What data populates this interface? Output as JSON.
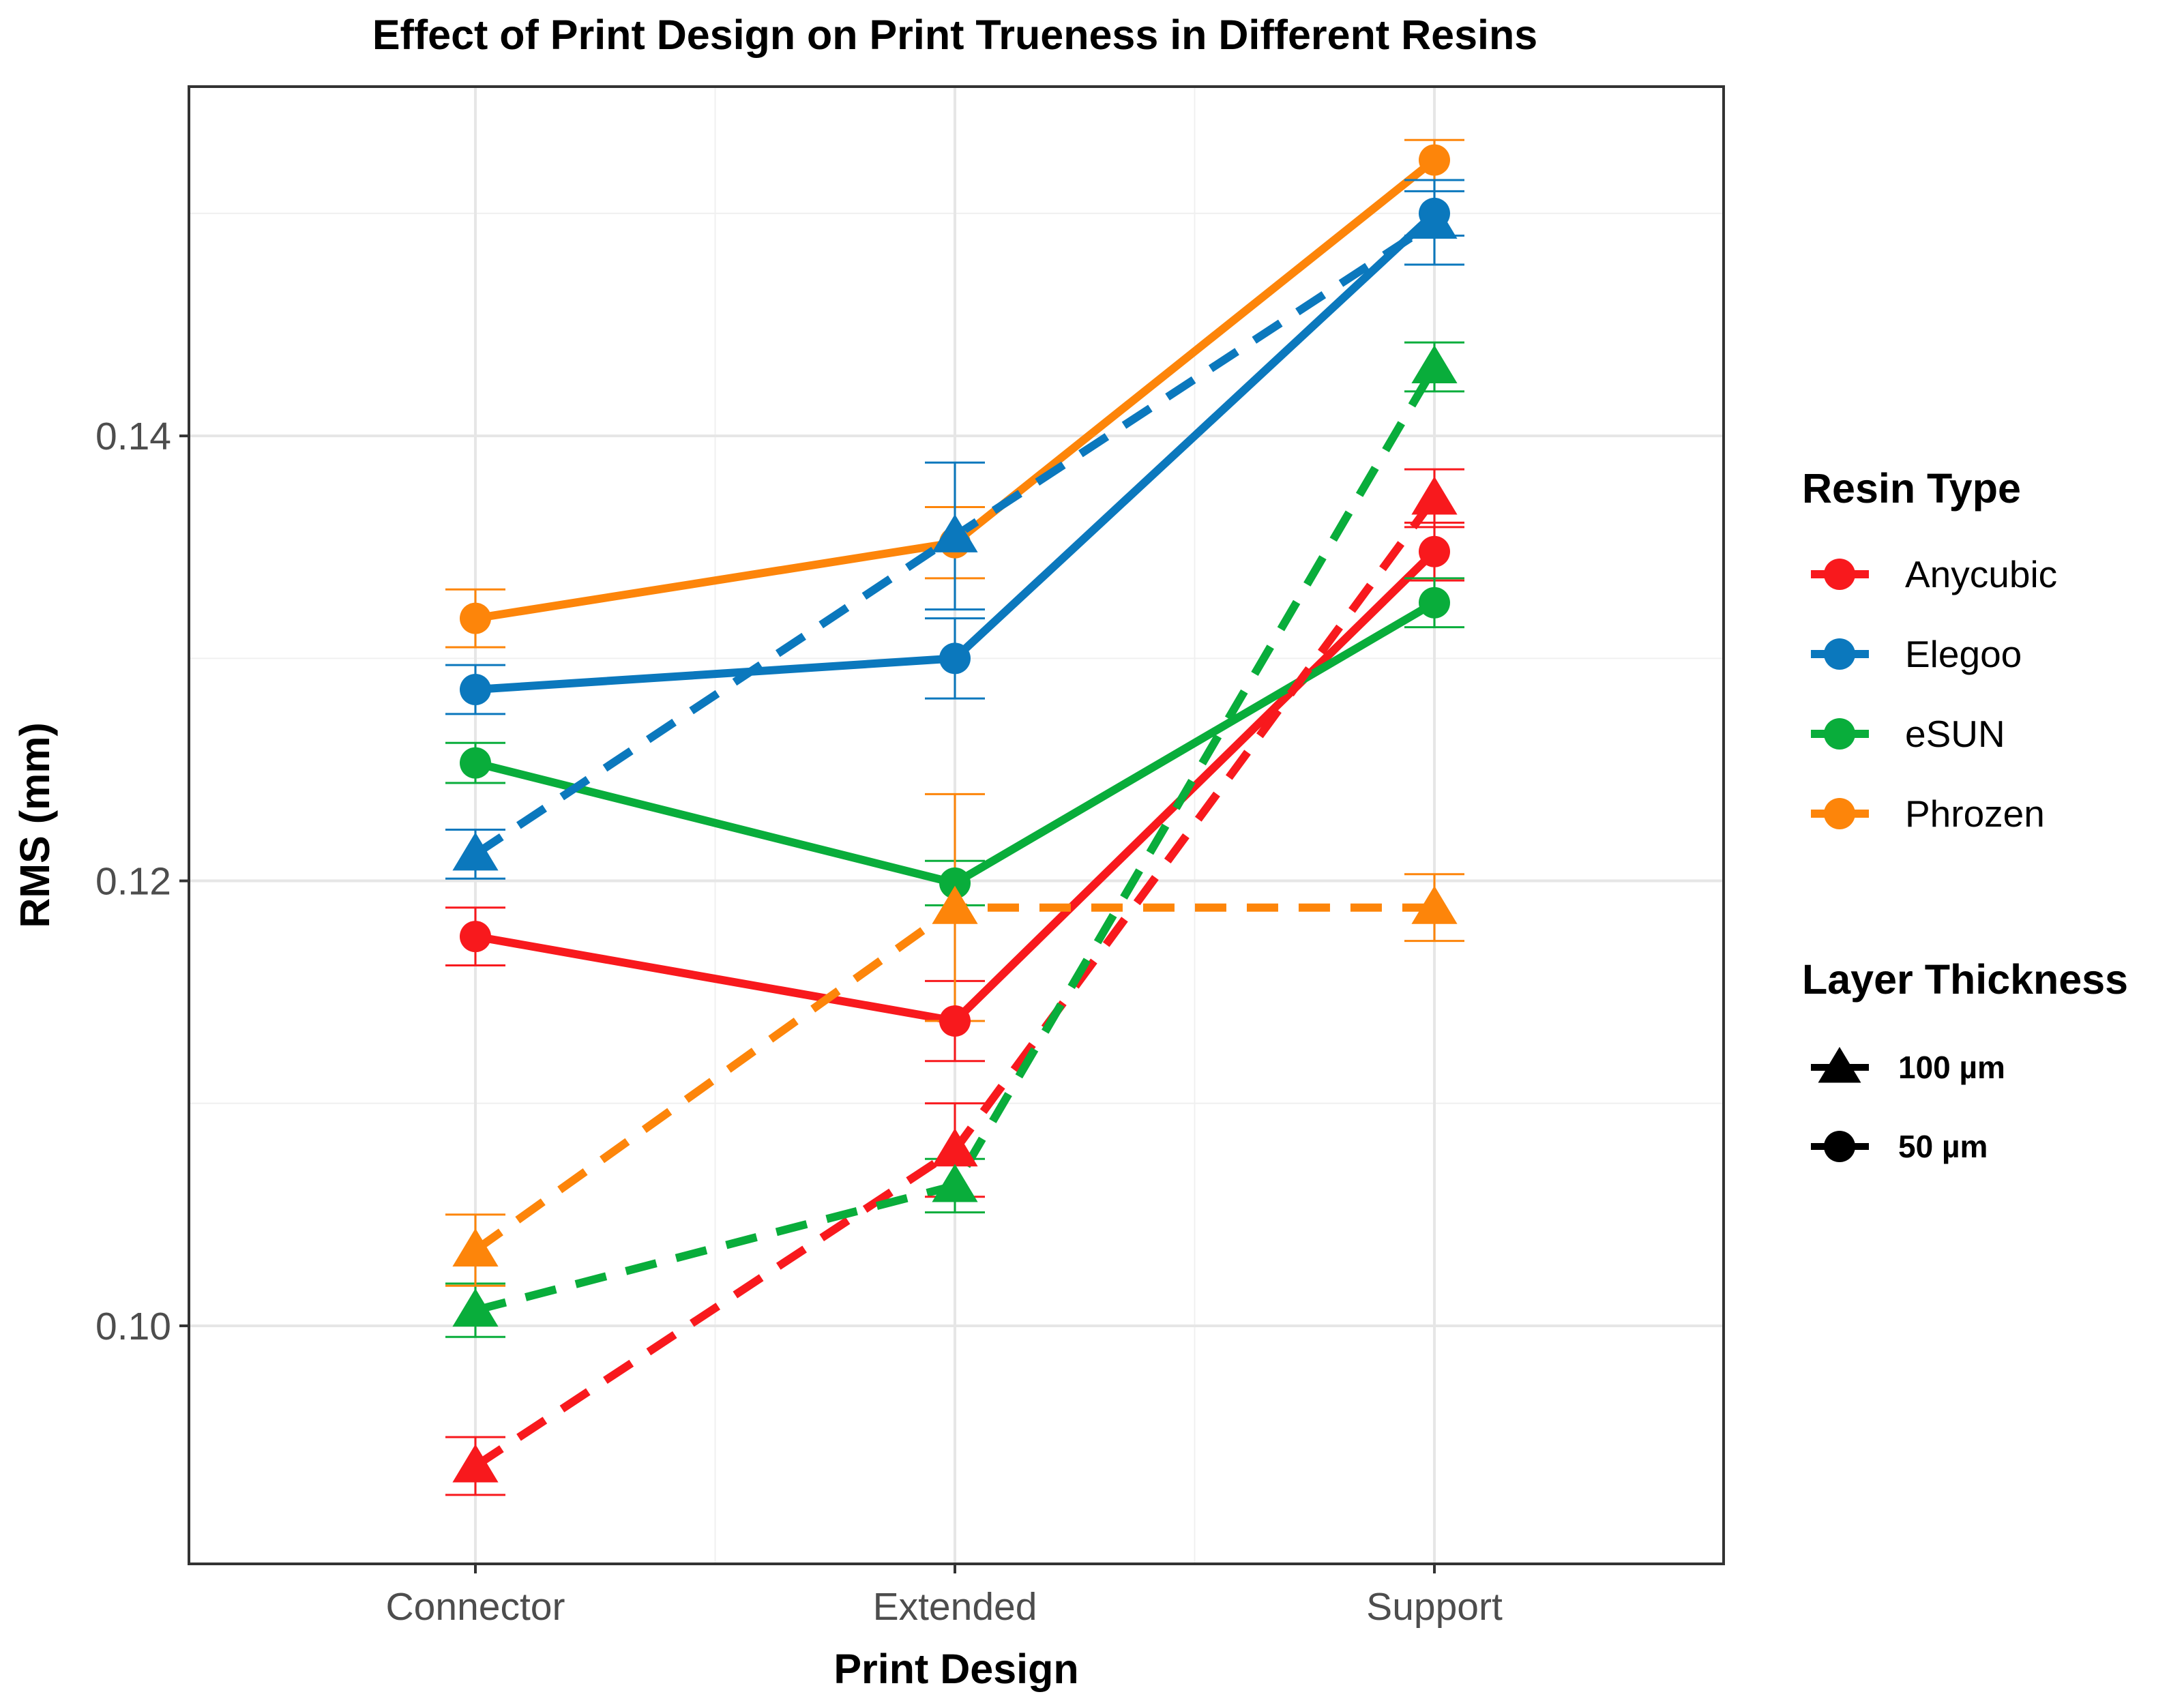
{
  "chart_data": {
    "type": "line",
    "title": "Effect of Print Design on Print Trueness in Different Resins",
    "xlabel": "Print Design",
    "ylabel": "RMS (mm)",
    "categories": [
      "Connector",
      "Extended",
      "Support"
    ],
    "ylim": [
      0.0893,
      0.1557
    ],
    "yticks": [
      0.1,
      0.12,
      0.14
    ],
    "ytick_labels": [
      "0.10",
      "0.12",
      "0.14"
    ],
    "grid": true,
    "legend_placement": "right",
    "colors": {
      "Anycubic": "#f8191d",
      "Elegoo": "#0b78bd",
      "eSUN": "#09ad3b",
      "Phrozen": "#fd850a"
    },
    "color_legend": {
      "title": "Resin Type",
      "entries": [
        "Anycubic",
        "Elegoo",
        "eSUN",
        "Phrozen"
      ]
    },
    "shape_legend": {
      "title": "Layer Thickness",
      "entries": [
        {
          "label": "100 µm",
          "shape": "triangle",
          "linetype": "dashed"
        },
        {
          "label": "50 µm",
          "shape": "circle",
          "linetype": "solid"
        }
      ]
    },
    "series": [
      {
        "resin": "Anycubic",
        "thickness": "50 µm",
        "values": [
          0.1175,
          0.1137,
          0.1348
        ],
        "errors": [
          0.0013,
          0.0018,
          0.0013
        ]
      },
      {
        "resin": "Elegoo",
        "thickness": "50 µm",
        "values": [
          0.1286,
          0.13,
          0.15
        ],
        "errors": [
          0.0011,
          0.0018,
          0.001
        ]
      },
      {
        "resin": "eSUN",
        "thickness": "50 µm",
        "values": [
          0.1253,
          0.1199,
          0.1325
        ],
        "errors": [
          0.0009,
          0.001,
          0.0011
        ]
      },
      {
        "resin": "Phrozen",
        "thickness": "50 µm",
        "values": [
          0.1318,
          0.1352,
          0.1524
        ],
        "errors": [
          0.0013,
          0.0016,
          0.0009
        ]
      },
      {
        "resin": "Anycubic",
        "thickness": "100 µm",
        "values": [
          0.0937,
          0.1079,
          0.1372
        ],
        "errors": [
          0.0013,
          0.0021,
          0.0013
        ]
      },
      {
        "resin": "Elegoo",
        "thickness": "100 µm",
        "values": [
          0.1212,
          0.1355,
          0.1496
        ],
        "errors": [
          0.0011,
          0.0033,
          0.0019
        ]
      },
      {
        "resin": "eSUN",
        "thickness": "100 µm",
        "values": [
          0.1007,
          0.1063,
          0.1431
        ],
        "errors": [
          0.0012,
          0.0012,
          0.0011
        ]
      },
      {
        "resin": "Phrozen",
        "thickness": "100 µm",
        "values": [
          0.1034,
          0.1188,
          0.1188
        ],
        "errors": [
          0.0016,
          0.0051,
          0.0015
        ]
      }
    ]
  }
}
